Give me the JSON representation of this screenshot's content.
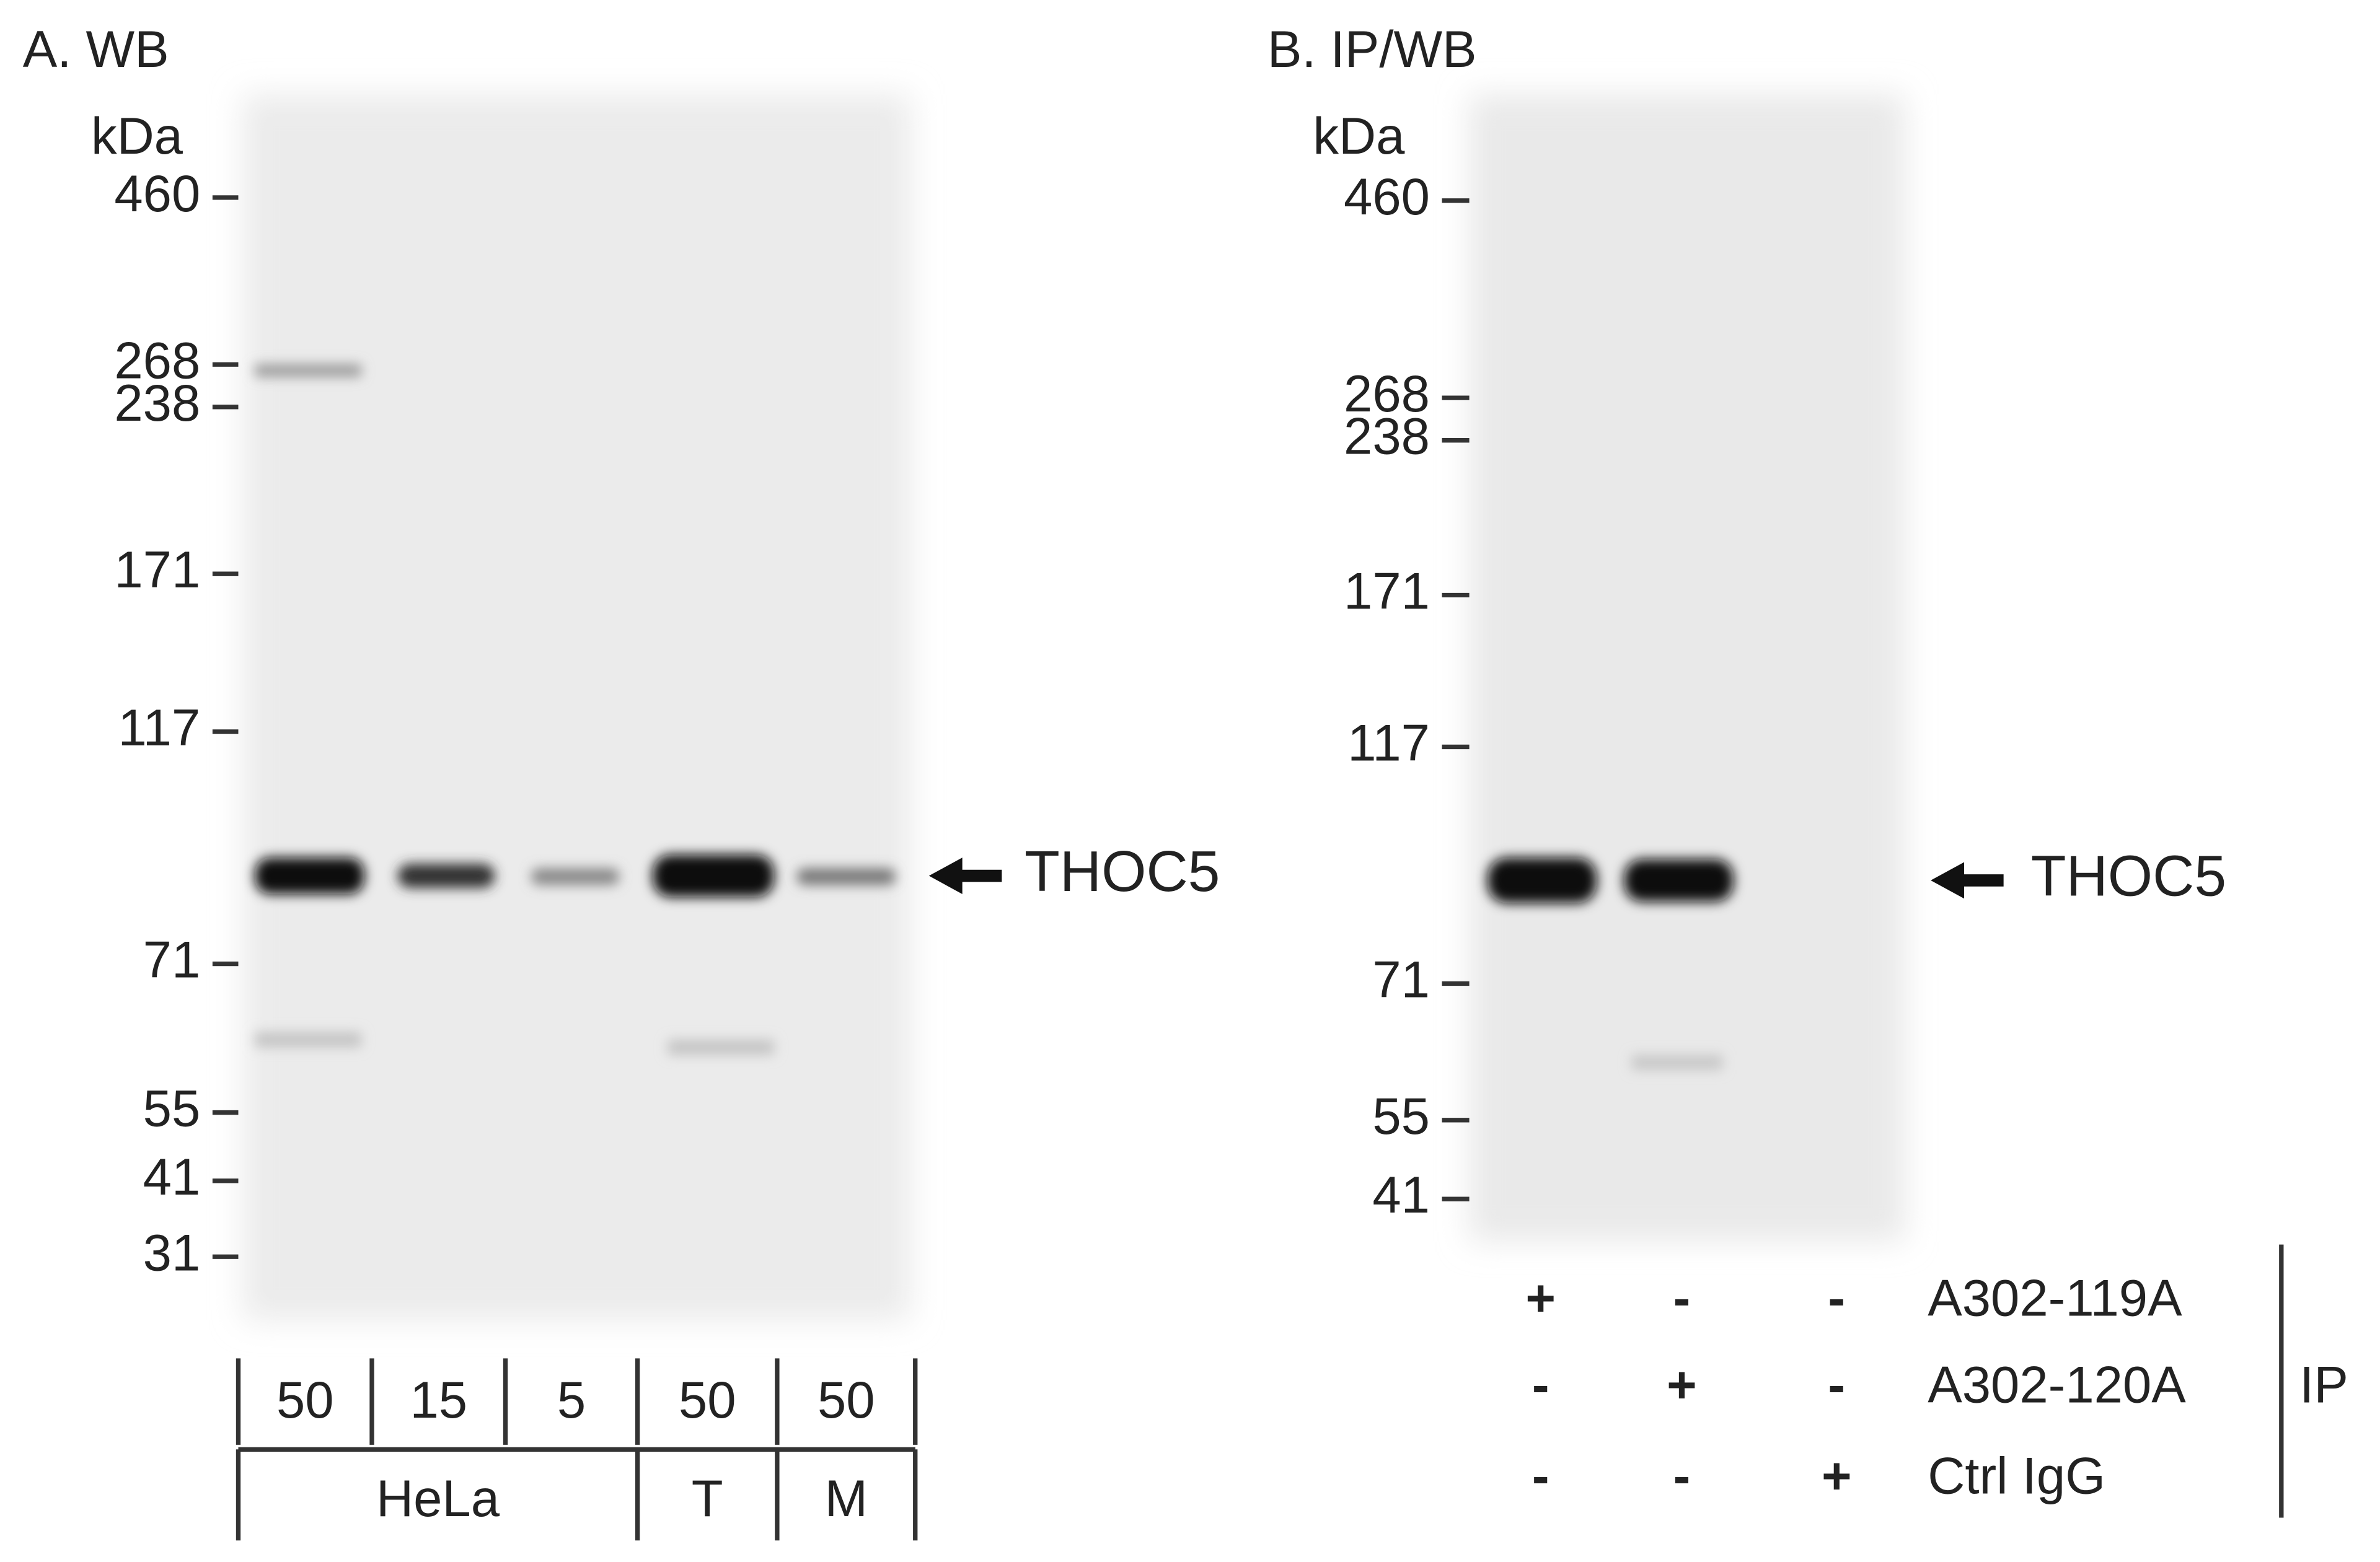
{
  "panels": [
    {
      "title": "A. WB",
      "unit": "kDa",
      "markers": [
        "460",
        "268",
        "238",
        "171",
        "117",
        "71",
        "55",
        "41",
        "31"
      ],
      "target": "THOC5",
      "lane_amounts": [
        "50",
        "15",
        "5",
        "50",
        "50"
      ],
      "lane_groups": [
        "HeLa",
        "T",
        "M"
      ]
    },
    {
      "title": "B. IP/WB",
      "unit": "kDa",
      "markers": [
        "460",
        "268",
        "238",
        "171",
        "117",
        "71",
        "55",
        "41"
      ],
      "target": "THOC5",
      "rows": [
        {
          "label": "A302-119A",
          "marks": [
            "+",
            "-",
            "-"
          ]
        },
        {
          "label": "A302-120A",
          "marks": [
            "-",
            "+",
            "-"
          ]
        },
        {
          "label": "Ctrl IgG",
          "marks": [
            "-",
            "-",
            "+"
          ]
        }
      ],
      "group_label": "IP"
    }
  ]
}
